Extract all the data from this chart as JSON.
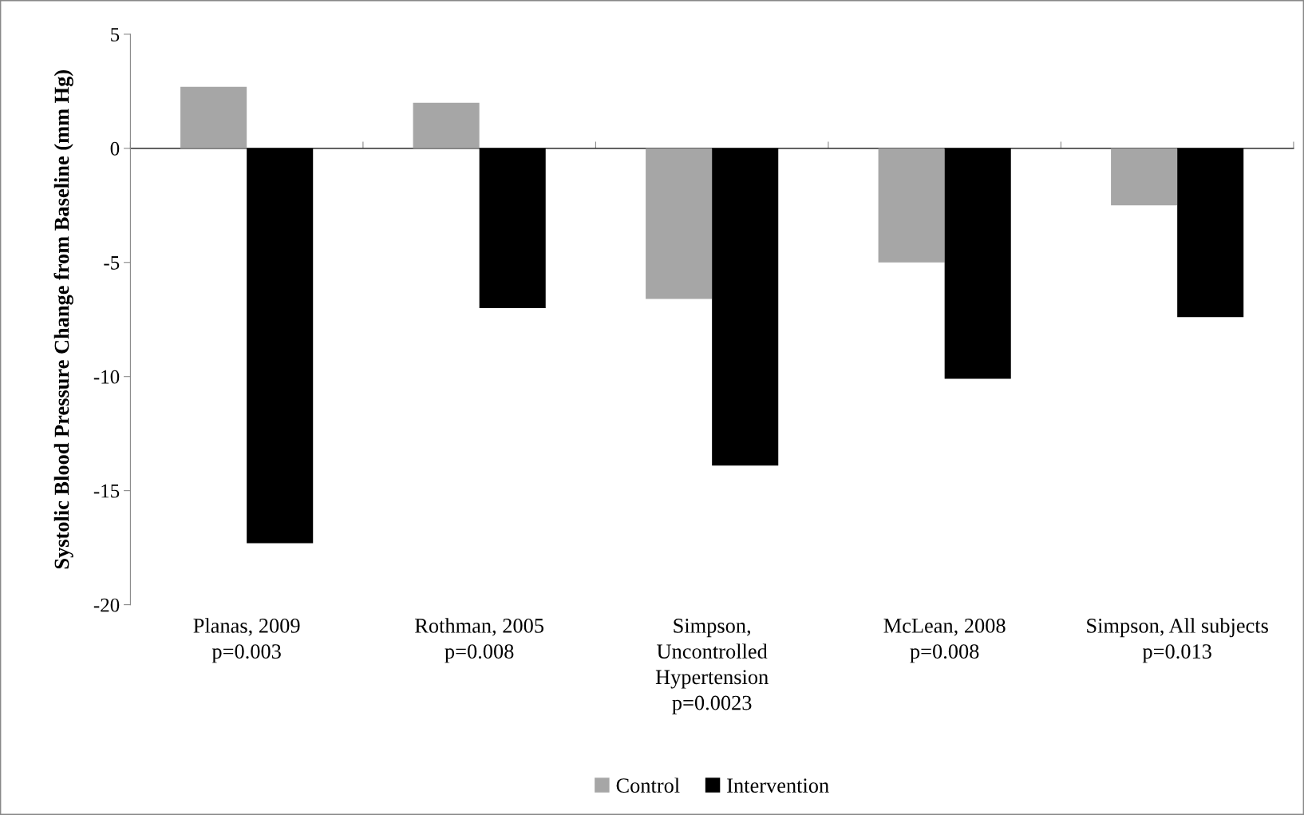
{
  "chart_data": {
    "type": "bar",
    "ylabel": "Systolic Blood Pressure Change from Baseline (mm Hg)",
    "categories": [
      "Planas, 2009\np=0.003",
      "Rothman, 2005\np=0.008",
      "Simpson,\nUncontrolled\nHypertension\np=0.0023",
      "McLean, 2008\np=0.008",
      "Simpson, All subjects\np=0.013"
    ],
    "series": [
      {
        "name": "Control",
        "color": "#a6a6a6",
        "values": [
          2.7,
          2.0,
          -6.6,
          -5.0,
          -2.5
        ]
      },
      {
        "name": "Intervention",
        "color": "#000000",
        "values": [
          -17.3,
          -7.0,
          -13.9,
          -10.1,
          -7.4
        ]
      }
    ],
    "ylim": [
      -20,
      5
    ],
    "yticks": [
      -20,
      -15,
      -10,
      -5,
      0,
      5
    ],
    "legend": "bottom"
  }
}
